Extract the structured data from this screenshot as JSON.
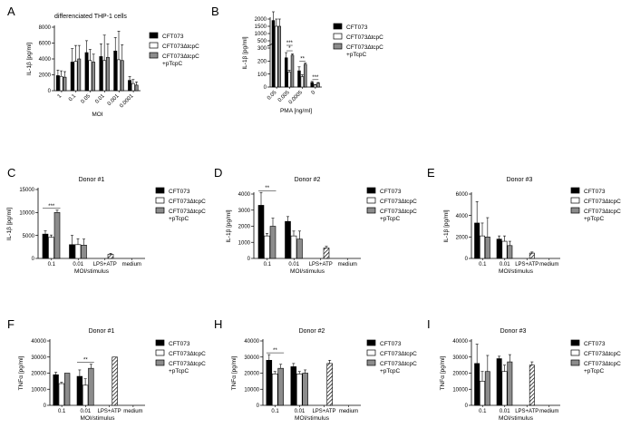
{
  "legend_labels": {
    "top": [
      "CFT073",
      "CFT073∆tcpC",
      "CFT073∆tcpC\n+pTcpC"
    ],
    "donor": [
      "CFT073",
      "CFT073∆tcpC",
      "CFT073∆tcpC\n+pTcpC"
    ]
  },
  "chart_data": [
    {
      "id": "A",
      "type": "bar",
      "title": "differenciated THP-1 cells",
      "xlabel": "MOI",
      "ylabel": "IL-1β [pg/ml]",
      "categories": [
        "1",
        "0.1",
        "0.05",
        "0.01",
        "0.001",
        "0.0001"
      ],
      "yticks": [
        0,
        2000,
        4000,
        6000,
        8000
      ],
      "ylim": [
        0,
        8000
      ],
      "series": [
        {
          "name": "CFT073",
          "values": [
            1900,
            3600,
            4800,
            4300,
            5000,
            1300
          ],
          "err": [
            700,
            1700,
            1500,
            1600,
            1700,
            500
          ]
        },
        {
          "name": "CFT073∆tcpC",
          "values": [
            1800,
            3700,
            3800,
            3800,
            3900,
            900
          ],
          "err": [
            700,
            2000,
            1400,
            3200,
            3600,
            500
          ]
        },
        {
          "name": "CFT073∆tcpC +pTcpC",
          "values": [
            1700,
            4000,
            3600,
            4200,
            3800,
            700
          ],
          "err": [
            700,
            1700,
            1000,
            1700,
            2000,
            400
          ]
        }
      ],
      "annotations": []
    },
    {
      "id": "B",
      "type": "bar",
      "title": "",
      "xlabel": "PMA [ng/ml]",
      "ylabel": "IL-1β [pg/ml]",
      "categories": [
        "0.05",
        "0.005",
        "0.0005",
        "0"
      ],
      "yticks": [
        0,
        100,
        200,
        300,
        500,
        1000,
        1500,
        2000
      ],
      "ylim": [
        0,
        2500
      ],
      "series": [
        {
          "name": "CFT073",
          "values": [
            1900,
            225,
            125,
            35
          ],
          "err": [
            600,
            40,
            30,
            8
          ]
        },
        {
          "name": "CFT073∆tcpC",
          "values": [
            1500,
            115,
            80,
            15
          ],
          "err": [
            500,
            15,
            15,
            5
          ]
        },
        {
          "name": "CFT073∆tcpC +pTcpC",
          "values": [
            1500,
            245,
            175,
            30
          ],
          "err": [
            500,
            10,
            10,
            5
          ]
        }
      ],
      "annotations": [
        "*",
        "***",
        "**",
        "***"
      ]
    },
    {
      "id": "C",
      "type": "bar",
      "title": "Donor #1",
      "xlabel": "MOI/stimulus",
      "ylabel": "IL-1β [pg/ml]",
      "categories": [
        "0.1",
        "0.01",
        "LPS+ATP",
        "medium"
      ],
      "yticks": [
        0,
        5000,
        10000,
        15000
      ],
      "ylim": [
        0,
        15000
      ],
      "series": [
        {
          "name": "CFT073",
          "values": [
            5300,
            3000,
            null,
            0
          ],
          "err": [
            700,
            2000,
            null,
            0
          ]
        },
        {
          "name": "CFT073∆tcpC",
          "values": [
            4600,
            3000,
            null,
            0
          ],
          "err": [
            500,
            1300,
            null,
            0
          ]
        },
        {
          "name": "CFT073∆tcpC +pTcpC",
          "values": [
            10000,
            2900,
            900,
            0
          ],
          "err": [
            500,
            1300,
            200,
            0
          ]
        }
      ],
      "annotations": [
        "***"
      ]
    },
    {
      "id": "D",
      "type": "bar",
      "title": "Donor #2",
      "xlabel": "MOI/stimulus",
      "ylabel": "IL-1β [pg/ml]",
      "categories": [
        "0.1",
        "0.01",
        "LPS+ATP",
        "medium"
      ],
      "yticks": [
        0,
        1000,
        2000,
        3000,
        4000
      ],
      "ylim": [
        0,
        4000
      ],
      "series": [
        {
          "name": "CFT073",
          "values": [
            3300,
            2300,
            null,
            0
          ],
          "err": [
            800,
            300,
            null,
            0
          ]
        },
        {
          "name": "CFT073∆tcpC",
          "values": [
            1400,
            1400,
            null,
            0
          ],
          "err": [
            150,
            300,
            null,
            0
          ]
        },
        {
          "name": "CFT073∆tcpC +pTcpC",
          "values": [
            2000,
            1200,
            650,
            0
          ],
          "err": [
            500,
            500,
            100,
            0
          ]
        }
      ],
      "annotations": [
        "**"
      ]
    },
    {
      "id": "E",
      "type": "bar",
      "title": "Donor #3",
      "xlabel": "MOI/stimulus",
      "ylabel": "IL-1β [pg/ml]",
      "categories": [
        "0.1",
        "0.01",
        "LPS+ATP",
        "medium"
      ],
      "yticks": [
        0,
        2000,
        4000,
        6000
      ],
      "ylim": [
        0,
        6000
      ],
      "series": [
        {
          "name": "CFT073",
          "values": [
            3300,
            1800,
            null,
            0
          ],
          "err": [
            2000,
            300,
            null,
            0
          ]
        },
        {
          "name": "CFT073∆tcpC",
          "values": [
            2100,
            1600,
            null,
            0
          ],
          "err": [
            1200,
            500,
            null,
            0
          ]
        },
        {
          "name": "CFT073∆tcpC +pTcpC",
          "values": [
            2000,
            1200,
            500,
            0
          ],
          "err": [
            1800,
            400,
            100,
            0
          ]
        }
      ],
      "annotations": []
    },
    {
      "id": "F",
      "type": "bar",
      "title": "Donor #1",
      "xlabel": "MOI/stimulus",
      "ylabel": "TNFα [pg/ml]",
      "categories": [
        "0.1",
        "0.01",
        "LPS+ATP",
        "medium"
      ],
      "yticks": [
        0,
        10000,
        20000,
        30000,
        40000
      ],
      "ylim": [
        0,
        40000
      ],
      "series": [
        {
          "name": "CFT073",
          "values": [
            19000,
            18000,
            null,
            0
          ],
          "err": [
            1500,
            4000,
            null,
            0
          ]
        },
        {
          "name": "CFT073∆tcpC",
          "values": [
            13500,
            12500,
            null,
            0
          ],
          "err": [
            800,
            4000,
            null,
            0
          ]
        },
        {
          "name": "CFT073∆tcpC +pTcpC",
          "values": [
            20000,
            23000,
            30000,
            0
          ],
          "err": [
            0,
            2500,
            0,
            0
          ]
        }
      ],
      "annotations": [
        "**"
      ]
    },
    {
      "id": "H",
      "type": "bar",
      "title": "Donor #2",
      "xlabel": "MOI/stimulus",
      "ylabel": "TNFα [pg/ml]",
      "categories": [
        "0.1",
        "0.01",
        "LPS+ATP",
        "medium"
      ],
      "yticks": [
        0,
        10000,
        20000,
        30000,
        40000
      ],
      "ylim": [
        0,
        40000
      ],
      "series": [
        {
          "name": "CFT073",
          "values": [
            28000,
            24000,
            null,
            0
          ],
          "err": [
            3500,
            2000,
            null,
            0
          ]
        },
        {
          "name": "CFT073∆tcpC",
          "values": [
            19500,
            19500,
            null,
            0
          ],
          "err": [
            1500,
            1500,
            null,
            0
          ]
        },
        {
          "name": "CFT073∆tcpC +pTcpC",
          "values": [
            23000,
            20000,
            26000,
            0
          ],
          "err": [
            2500,
            2000,
            2000,
            0
          ]
        }
      ],
      "annotations": [
        "**"
      ]
    },
    {
      "id": "I",
      "type": "bar",
      "title": "Donor #3",
      "xlabel": "MOI/stimulus",
      "ylabel": "TNFα [pg/ml]",
      "categories": [
        "0.1",
        "0.01",
        "LPS+ATP",
        "medium"
      ],
      "yticks": [
        0,
        10000,
        20000,
        30000,
        40000
      ],
      "ylim": [
        0,
        40000
      ],
      "series": [
        {
          "name": "CFT073",
          "values": [
            26000,
            29000,
            null,
            0
          ],
          "err": [
            12000,
            1500,
            null,
            0
          ]
        },
        {
          "name": "CFT073∆tcpC",
          "values": [
            15000,
            21000,
            null,
            0
          ],
          "err": [
            6000,
            4000,
            null,
            0
          ]
        },
        {
          "name": "CFT073∆tcpC +pTcpC",
          "values": [
            21000,
            27000,
            25000,
            0
          ],
          "err": [
            10000,
            4500,
            2000,
            0
          ]
        }
      ],
      "annotations": []
    }
  ]
}
